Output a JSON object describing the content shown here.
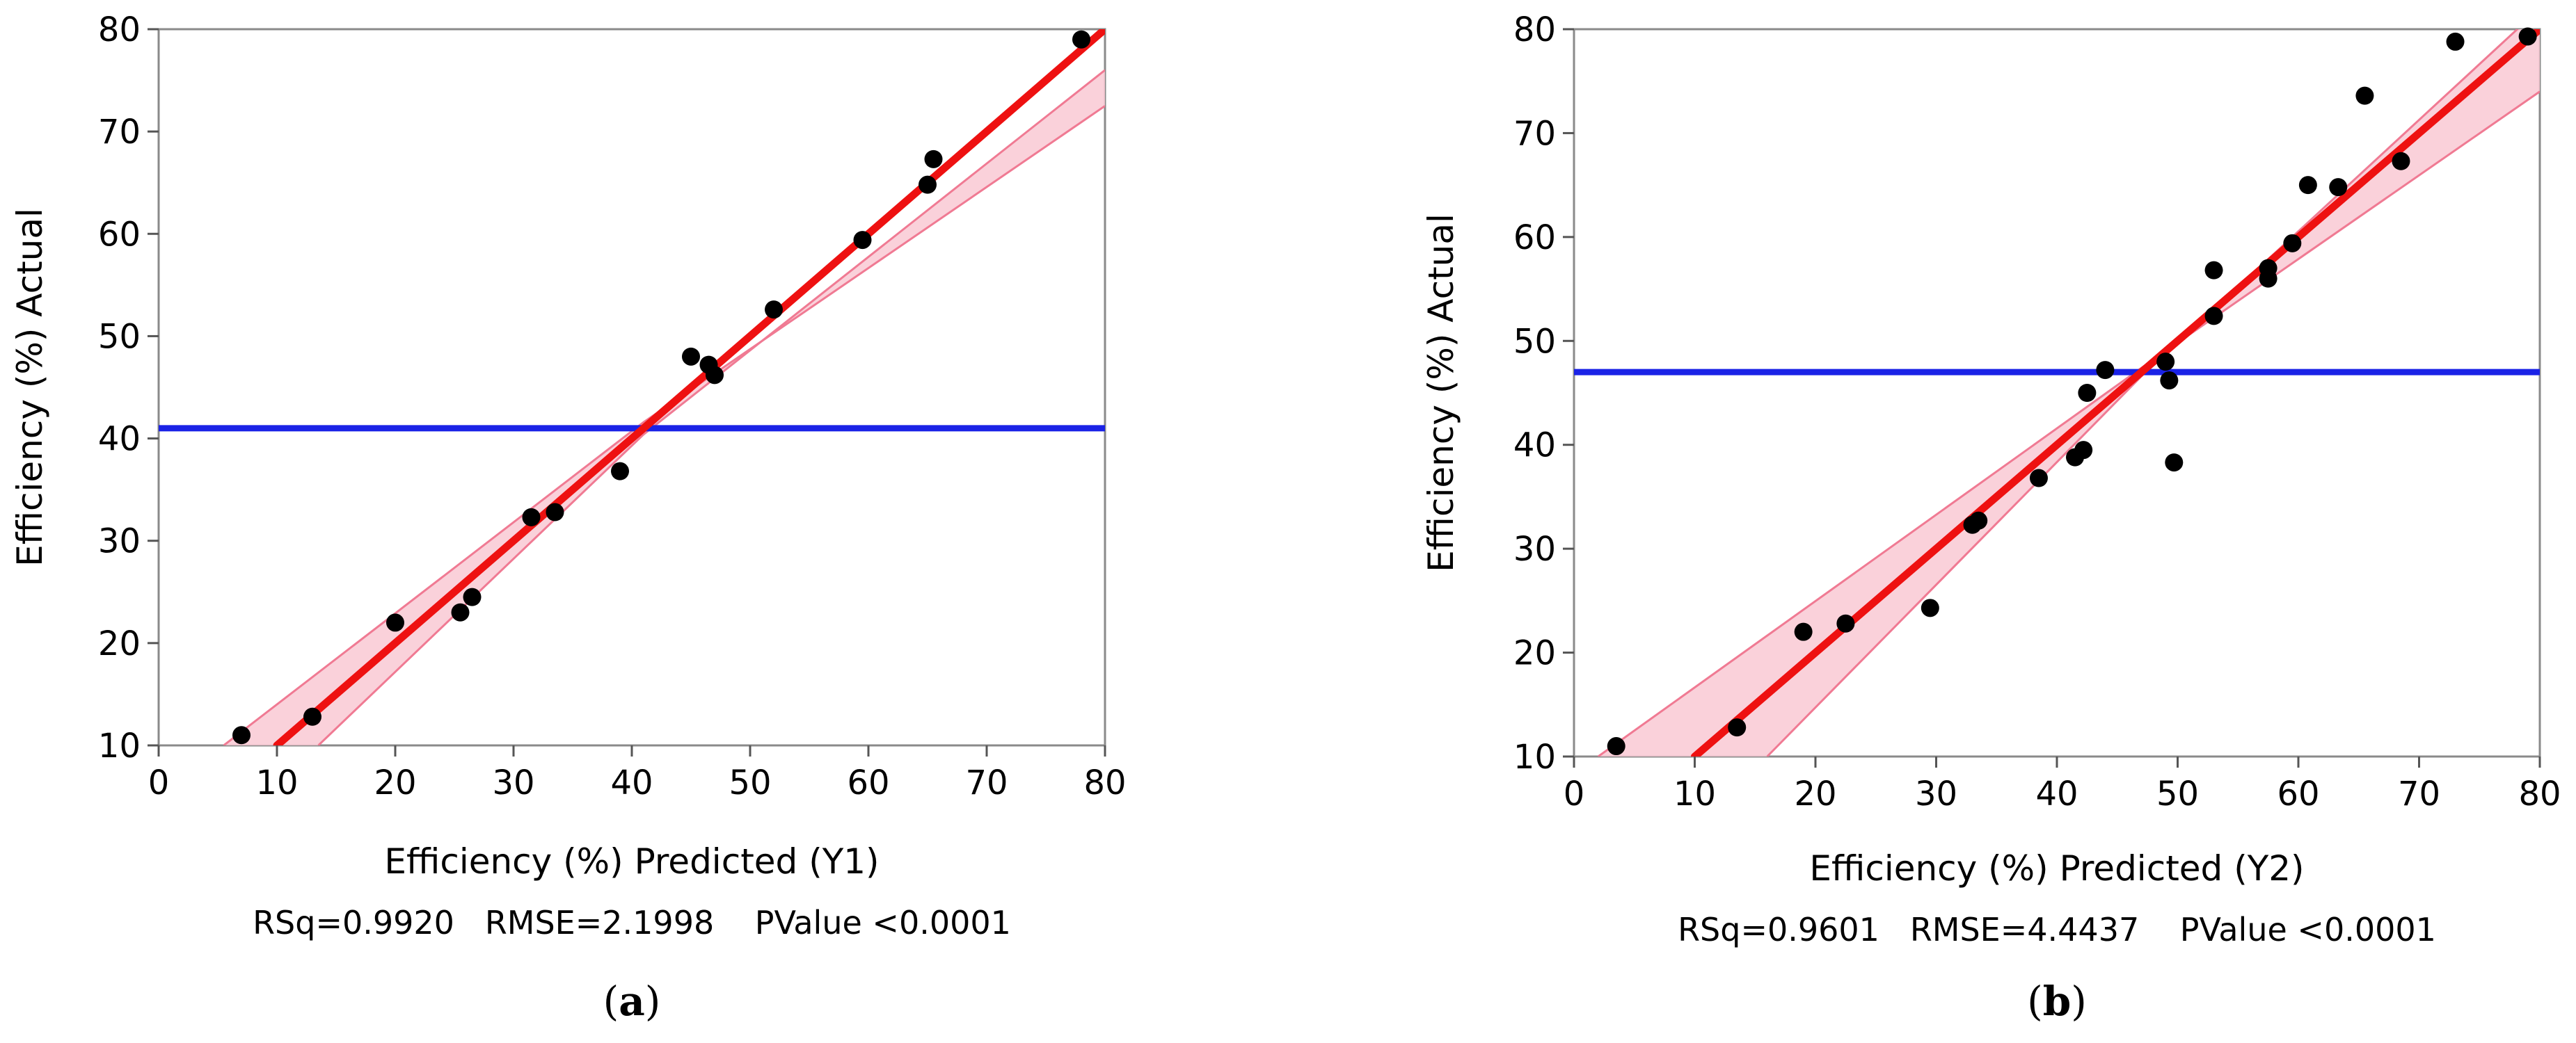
{
  "chart_data": [
    {
      "type": "scatter",
      "panel_label": "a",
      "xlabel": "Efficiency (%) Predicted (Y1)",
      "ylabel": "Efficiency (%) Actual",
      "stats_text": "RSq=0.9920   RMSE=2.1998    PValue <0.0001",
      "xlim": [
        0,
        80
      ],
      "ylim": [
        10,
        80
      ],
      "xticks": [
        0,
        10,
        20,
        30,
        40,
        50,
        60,
        70,
        80
      ],
      "yticks": [
        10,
        20,
        30,
        40,
        50,
        60,
        70,
        80
      ],
      "mean_line_y": 41,
      "fit_line": [
        [
          10,
          10
        ],
        [
          80,
          80
        ]
      ],
      "confidence_band": {
        "upper": [
          [
            5.5,
            10
          ],
          [
            41,
            41.6
          ],
          [
            80,
            72.5
          ]
        ],
        "lower": [
          [
            13.5,
            10
          ],
          [
            41,
            40.4
          ],
          [
            80,
            76
          ]
        ]
      },
      "points": [
        {
          "x": 7,
          "y": 11
        },
        {
          "x": 13,
          "y": 12.8
        },
        {
          "x": 20,
          "y": 22
        },
        {
          "x": 25.5,
          "y": 23
        },
        {
          "x": 26.5,
          "y": 24.5
        },
        {
          "x": 31.5,
          "y": 32.3
        },
        {
          "x": 33.5,
          "y": 32.8
        },
        {
          "x": 39,
          "y": 36.8
        },
        {
          "x": 45,
          "y": 48
        },
        {
          "x": 46.5,
          "y": 47.2
        },
        {
          "x": 47,
          "y": 46.2
        },
        {
          "x": 52,
          "y": 52.6
        },
        {
          "x": 59.5,
          "y": 59.4
        },
        {
          "x": 65,
          "y": 64.8
        },
        {
          "x": 65.5,
          "y": 67.3
        },
        {
          "x": 78,
          "y": 79
        }
      ],
      "colors": {
        "points": "#000000",
        "fit": "#ee1111",
        "band": "#f9c9d3",
        "band_edge": "#f07a93",
        "mean": "#1a22e6"
      }
    },
    {
      "type": "scatter",
      "panel_label": "b",
      "xlabel": "Efficiency (%) Predicted (Y2)",
      "ylabel": "Efficiency (%) Actual",
      "stats_text": "RSq=0.9601   RMSE=4.4437    PValue <0.0001",
      "xlim": [
        0,
        80
      ],
      "ylim": [
        10,
        80
      ],
      "xticks": [
        0,
        10,
        20,
        30,
        40,
        50,
        60,
        70,
        80
      ],
      "yticks": [
        10,
        20,
        30,
        40,
        50,
        60,
        70,
        80
      ],
      "mean_line_y": 47,
      "fit_line": [
        [
          10,
          10
        ],
        [
          80,
          80
        ]
      ],
      "confidence_band": {
        "upper": [
          [
            2,
            10
          ],
          [
            47,
            47.4
          ],
          [
            80,
            74
          ]
        ],
        "lower": [
          [
            16,
            10
          ],
          [
            47,
            46.6
          ],
          [
            80,
            82
          ]
        ]
      },
      "points": [
        {
          "x": 3.5,
          "y": 11
        },
        {
          "x": 13.5,
          "y": 12.8
        },
        {
          "x": 19,
          "y": 22
        },
        {
          "x": 22.5,
          "y": 22.8
        },
        {
          "x": 29.5,
          "y": 24.3
        },
        {
          "x": 33,
          "y": 32.3
        },
        {
          "x": 33.5,
          "y": 32.7
        },
        {
          "x": 38.5,
          "y": 36.8
        },
        {
          "x": 41.5,
          "y": 38.8
        },
        {
          "x": 42.2,
          "y": 39.5
        },
        {
          "x": 42.5,
          "y": 45
        },
        {
          "x": 44,
          "y": 47.2
        },
        {
          "x": 49,
          "y": 48
        },
        {
          "x": 49.3,
          "y": 46.2
        },
        {
          "x": 49.7,
          "y": 38.3
        },
        {
          "x": 53,
          "y": 52.4
        },
        {
          "x": 53,
          "y": 56.8
        },
        {
          "x": 57.5,
          "y": 56
        },
        {
          "x": 57.5,
          "y": 57
        },
        {
          "x": 59.5,
          "y": 59.4
        },
        {
          "x": 60.8,
          "y": 65
        },
        {
          "x": 63.3,
          "y": 64.8
        },
        {
          "x": 65.5,
          "y": 73.6
        },
        {
          "x": 68.5,
          "y": 67.3
        },
        {
          "x": 73,
          "y": 78.8
        },
        {
          "x": 79,
          "y": 79.3
        }
      ],
      "colors": {
        "points": "#000000",
        "fit": "#ee1111",
        "band": "#f9c9d3",
        "band_edge": "#f07a93",
        "mean": "#1a22e6"
      }
    }
  ]
}
